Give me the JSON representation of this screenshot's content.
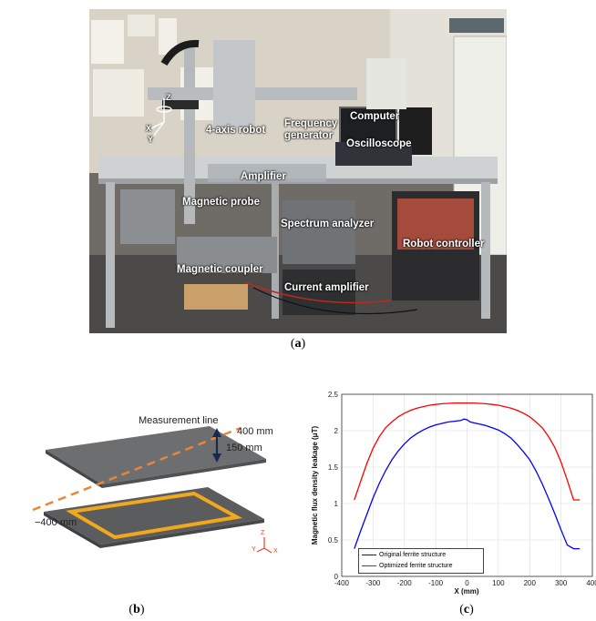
{
  "photo": {
    "labels": {
      "robot": "4-axis robot",
      "frequency_generator": "Frequency\ngenerator",
      "computer": "Computer",
      "oscilloscope": "Oscilloscope",
      "amplifier": "Amplifier",
      "magnetic_probe": "Magnetic probe",
      "spectrum_analyzer": "Spectrum analyzer",
      "robot_controller": "Robot controller",
      "magnetic_coupler": "Magnetic coupler",
      "current_amplifier": "Current amplifier"
    },
    "axes": {
      "z": "Z",
      "x": "X",
      "y": "Y"
    }
  },
  "captions": {
    "a": "a",
    "b": "b",
    "c": "c"
  },
  "diagram": {
    "measurement_line": "Measurement line",
    "right_end": "400 mm",
    "gap": "150 mm",
    "left_end": "−400 mm",
    "axes": {
      "z": "Z",
      "y": "Y",
      "x": "X"
    },
    "colors": {
      "plate": "#6d6e70",
      "line": "#e8863a",
      "coil": "#f0a81c"
    }
  },
  "chart_data": {
    "type": "line",
    "xlabel": "X (mm)",
    "ylabel": "Magnetic flux density leakage (μT)",
    "xlim": [
      -400,
      400
    ],
    "ylim": [
      0,
      2.5
    ],
    "xticks": [
      "-400",
      "-300",
      "-200",
      "-100",
      "0",
      "100",
      "200",
      "300",
      "400"
    ],
    "yticks": [
      "0",
      "0.5",
      "1",
      "1.5",
      "2",
      "2.5"
    ],
    "grid": true,
    "legend_position": "bottom-left",
    "series": [
      {
        "name": "Original ferrite structure",
        "color": "#0000ff",
        "x": [
          -360,
          -340,
          -320,
          -300,
          -280,
          -260,
          -240,
          -220,
          -200,
          -180,
          -160,
          -140,
          -120,
          -100,
          -80,
          -60,
          -40,
          -20,
          -10,
          0,
          10,
          20,
          40,
          60,
          80,
          100,
          120,
          140,
          160,
          180,
          200,
          220,
          240,
          260,
          280,
          300,
          320,
          340,
          360
        ],
        "y": [
          0.38,
          0.62,
          0.85,
          1.08,
          1.28,
          1.45,
          1.6,
          1.72,
          1.82,
          1.9,
          1.96,
          2.01,
          2.05,
          2.08,
          2.1,
          2.12,
          2.13,
          2.14,
          2.16,
          2.15,
          2.12,
          2.11,
          2.09,
          2.07,
          2.04,
          2.01,
          1.96,
          1.9,
          1.81,
          1.71,
          1.6,
          1.45,
          1.27,
          1.07,
          0.86,
          0.64,
          0.43,
          0.38,
          0.38
        ]
      },
      {
        "name": "Optimized ferrite structure",
        "color": "#ff0000",
        "x": [
          -360,
          -340,
          -320,
          -300,
          -280,
          -260,
          -240,
          -220,
          -200,
          -180,
          -160,
          -140,
          -120,
          -100,
          -80,
          -60,
          -40,
          -20,
          0,
          20,
          40,
          60,
          80,
          100,
          120,
          140,
          160,
          180,
          200,
          220,
          240,
          260,
          280,
          300,
          320,
          340,
          360
        ],
        "y": [
          1.05,
          1.3,
          1.55,
          1.76,
          1.92,
          2.04,
          2.12,
          2.19,
          2.24,
          2.28,
          2.31,
          2.33,
          2.35,
          2.36,
          2.37,
          2.375,
          2.38,
          2.38,
          2.38,
          2.38,
          2.375,
          2.37,
          2.36,
          2.35,
          2.33,
          2.31,
          2.28,
          2.24,
          2.19,
          2.12,
          2.04,
          1.92,
          1.77,
          1.57,
          1.32,
          1.05,
          1.05
        ]
      }
    ]
  }
}
